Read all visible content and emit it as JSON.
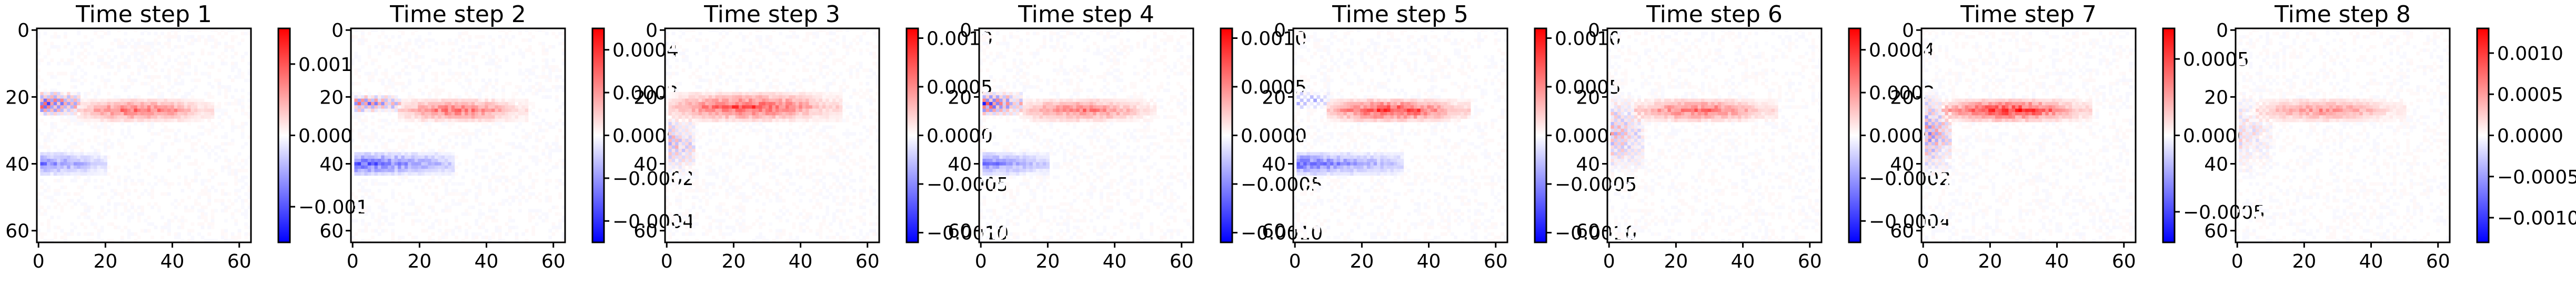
{
  "chart_data": [
    {
      "type": "heatmap",
      "title": "Time step 1",
      "x_ticks": [
        "0",
        "20",
        "40",
        "60"
      ],
      "y_ticks": [
        "0",
        "20",
        "40",
        "60"
      ],
      "xlim": [
        0,
        64
      ],
      "ylim": [
        64,
        0
      ],
      "colorbar": {
        "cmap": "bwr",
        "vmin": -0.0015,
        "vmax": 0.0015,
        "ticks": [
          0.001,
          0.0,
          -0.001
        ],
        "tick_labels": [
          "0.001",
          "0.000",
          "−0.001"
        ]
      },
      "features": [
        {
          "kind": "blue-red streak",
          "x_range": [
            1,
            12
          ],
          "y_range": [
            18,
            26
          ],
          "min": -0.0015,
          "max": 0.0015
        },
        {
          "kind": "positive band",
          "x_range": [
            12,
            52
          ],
          "y_range": [
            20,
            28
          ],
          "max": 0.0009
        },
        {
          "kind": "negative band",
          "x_range": [
            1,
            20
          ],
          "y_range": [
            36,
            44
          ],
          "min": -0.0009
        }
      ]
    },
    {
      "type": "heatmap",
      "title": "Time step 2",
      "x_ticks": [
        "0",
        "20",
        "40",
        "60"
      ],
      "y_ticks": [
        "0",
        "20",
        "40",
        "60"
      ],
      "xlim": [
        0,
        64
      ],
      "ylim": [
        64,
        0
      ],
      "colorbar": {
        "cmap": "bwr",
        "vmin": -0.0005,
        "vmax": 0.0005,
        "ticks": [
          0.0004,
          0.0002,
          0.0,
          -0.0002,
          -0.0004
        ],
        "tick_labels": [
          "0.0004",
          "0.0002",
          "0.0000",
          "−0.0002",
          "−0.0004"
        ]
      },
      "features": [
        {
          "kind": "red-blue checker",
          "x_range": [
            1,
            14
          ],
          "y_range": [
            19,
            25
          ],
          "min": -0.0004,
          "max": 0.0004
        },
        {
          "kind": "positive band",
          "x_range": [
            14,
            52
          ],
          "y_range": [
            20,
            28
          ],
          "max": 0.0003
        },
        {
          "kind": "negative band",
          "x_range": [
            1,
            30
          ],
          "y_range": [
            36,
            44
          ],
          "min": -0.0004
        }
      ]
    },
    {
      "type": "heatmap",
      "title": "Time step 3",
      "x_ticks": [
        "0",
        "20",
        "40",
        "60"
      ],
      "y_ticks": [
        "0",
        "20",
        "40",
        "60"
      ],
      "xlim": [
        0,
        64
      ],
      "ylim": [
        64,
        0
      ],
      "colorbar": {
        "cmap": "bwr",
        "vmin": -0.0011,
        "vmax": 0.0011,
        "ticks": [
          0.001,
          0.0005,
          0.0,
          -0.0005,
          -0.001
        ],
        "tick_labels": [
          "0.0010",
          "0.0005",
          "0.0000",
          "−0.0005",
          "−0.0010"
        ]
      },
      "features": [
        {
          "kind": "positive band",
          "x_range": [
            1,
            52
          ],
          "y_range": [
            18,
            28
          ],
          "max": 0.0008
        },
        {
          "kind": "mixed column",
          "x_range": [
            1,
            8
          ],
          "y_range": [
            24,
            44
          ],
          "min": -0.0005,
          "max": 0.0005
        }
      ]
    },
    {
      "type": "heatmap",
      "title": "Time step 4",
      "x_ticks": [
        "0",
        "20",
        "40",
        "60"
      ],
      "y_ticks": [
        "0",
        "20",
        "40",
        "60"
      ],
      "xlim": [
        0,
        64
      ],
      "ylim": [
        64,
        0
      ],
      "colorbar": {
        "cmap": "bwr",
        "vmin": -0.0011,
        "vmax": 0.0011,
        "ticks": [
          0.001,
          0.0005,
          0.0,
          -0.0005,
          -0.001
        ],
        "tick_labels": [
          "0.0010",
          "0.0005",
          "0.0000",
          "−0.0005",
          "−0.0010"
        ]
      },
      "features": [
        {
          "kind": "blue-red streak",
          "x_range": [
            1,
            12
          ],
          "y_range": [
            18,
            26
          ],
          "min": -0.001,
          "max": 0.001
        },
        {
          "kind": "positive band",
          "x_range": [
            12,
            52
          ],
          "y_range": [
            20,
            28
          ],
          "max": 0.0006
        },
        {
          "kind": "negative band",
          "x_range": [
            1,
            20
          ],
          "y_range": [
            36,
            44
          ],
          "min": -0.0007
        }
      ]
    },
    {
      "type": "heatmap",
      "title": "Time step 5",
      "x_ticks": [
        "0",
        "20",
        "40",
        "60"
      ],
      "y_ticks": [
        "0",
        "20",
        "40",
        "60"
      ],
      "xlim": [
        0,
        64
      ],
      "ylim": [
        64,
        0
      ],
      "colorbar": {
        "cmap": "bwr",
        "vmin": -0.0011,
        "vmax": 0.0011,
        "ticks": [
          0.001,
          0.0005,
          0.0,
          -0.0005,
          -0.001
        ],
        "tick_labels": [
          "0.0010",
          "0.0005",
          "0.0000",
          "−0.0005",
          "−0.0010"
        ]
      },
      "features": [
        {
          "kind": "positive band",
          "x_range": [
            10,
            52
          ],
          "y_range": [
            20,
            28
          ],
          "max": 0.0009
        },
        {
          "kind": "negative band",
          "x_range": [
            1,
            32
          ],
          "y_range": [
            36,
            44
          ],
          "min": -0.0008
        },
        {
          "kind": "blue specks",
          "x_range": [
            1,
            10
          ],
          "y_range": [
            18,
            24
          ],
          "min": -0.0006
        }
      ]
    },
    {
      "type": "heatmap",
      "title": "Time step 6",
      "x_ticks": [
        "0",
        "20",
        "40",
        "60"
      ],
      "y_ticks": [
        "0",
        "20",
        "40",
        "60"
      ],
      "xlim": [
        0,
        64
      ],
      "ylim": [
        64,
        0
      ],
      "colorbar": {
        "cmap": "bwr",
        "vmin": -0.0005,
        "vmax": 0.0005,
        "ticks": [
          0.0004,
          0.0002,
          0.0,
          -0.0002,
          -0.0004
        ],
        "tick_labels": [
          "0.0004",
          "0.0002",
          "0.0000",
          "−0.0002",
          "−0.0004"
        ]
      },
      "features": [
        {
          "kind": "positive band",
          "x_range": [
            8,
            50
          ],
          "y_range": [
            20,
            28
          ],
          "max": 0.0003
        },
        {
          "kind": "faint mixed",
          "x_range": [
            1,
            10
          ],
          "y_range": [
            18,
            44
          ],
          "min": -0.0002,
          "max": 0.0002
        }
      ]
    },
    {
      "type": "heatmap",
      "title": "Time step 7",
      "x_ticks": [
        "0",
        "20",
        "40",
        "60"
      ],
      "y_ticks": [
        "0",
        "20",
        "40",
        "60"
      ],
      "xlim": [
        0,
        64
      ],
      "ylim": [
        64,
        0
      ],
      "colorbar": {
        "cmap": "bwr",
        "vmin": -0.0007,
        "vmax": 0.0007,
        "ticks": [
          0.0005,
          0.0,
          -0.0005
        ],
        "tick_labels": [
          "0.0005",
          "0.0000",
          "−0.0005"
        ]
      },
      "features": [
        {
          "kind": "positive band",
          "x_range": [
            6,
            50
          ],
          "y_range": [
            20,
            28
          ],
          "max": 0.0006
        },
        {
          "kind": "mixed column",
          "x_range": [
            1,
            8
          ],
          "y_range": [
            18,
            44
          ],
          "min": -0.0004,
          "max": 0.0004
        }
      ]
    },
    {
      "type": "heatmap",
      "title": "Time step 8",
      "x_ticks": [
        "0",
        "20",
        "40",
        "60"
      ],
      "y_ticks": [
        "0",
        "20",
        "40",
        "60"
      ],
      "xlim": [
        0,
        64
      ],
      "ylim": [
        64,
        0
      ],
      "colorbar": {
        "cmap": "bwr",
        "vmin": -0.0013,
        "vmax": 0.0013,
        "ticks": [
          0.001,
          0.0005,
          0.0,
          -0.0005,
          -0.001
        ],
        "tick_labels": [
          "0.0010",
          "0.0005",
          "0.0000",
          "−0.0005",
          "−0.0010"
        ]
      },
      "features": [
        {
          "kind": "positive band",
          "x_range": [
            6,
            50
          ],
          "y_range": [
            20,
            28
          ],
          "max": 0.0006
        },
        {
          "kind": "faint mixed",
          "x_range": [
            1,
            10
          ],
          "y_range": [
            18,
            44
          ],
          "min": -0.0003,
          "max": 0.0003
        }
      ]
    }
  ]
}
